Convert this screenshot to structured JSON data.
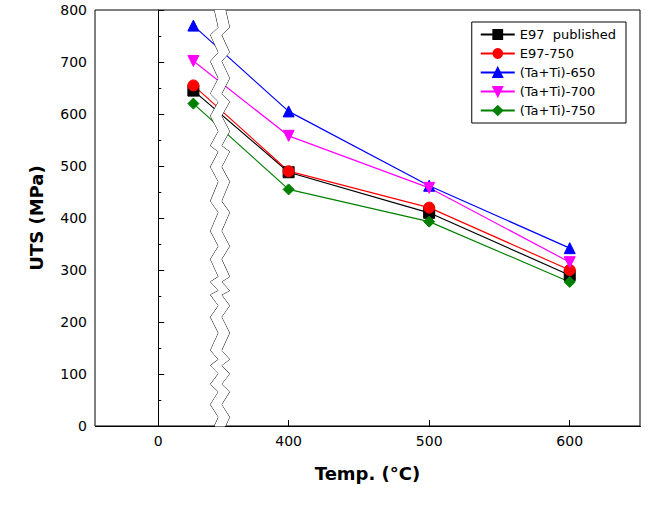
{
  "chart_data": {
    "type": "line",
    "x_label": "Temp. (°C)",
    "y_label": "UTS (MPa)",
    "x": [
      25,
      400,
      500,
      600
    ],
    "xlim": [
      -45,
      650
    ],
    "xticks": [
      0,
      400,
      500,
      600
    ],
    "x_break": [
      40,
      355
    ],
    "ylim": [
      0,
      800
    ],
    "yticks": [
      0,
      100,
      200,
      300,
      400,
      500,
      600,
      700,
      800
    ],
    "grid": false,
    "legend": "upper right",
    "series": [
      {
        "name": "E97  published",
        "color": "#000000",
        "marker": "square",
        "line_style": "solid",
        "values": [
          645,
          488,
          410,
          290
        ]
      },
      {
        "name": "E97-750",
        "color": "#ff0000",
        "marker": "circle",
        "line_style": "solid",
        "values": [
          655,
          490,
          420,
          300
        ]
      },
      {
        "name": "(Ta+Ti)-650",
        "color": "#0000ff",
        "marker": "triangle",
        "line_style": "solid",
        "values": [
          770,
          605,
          462,
          342
        ]
      },
      {
        "name": "(Ta+Ti)-700",
        "color": "#ff00ff",
        "marker": "triangle-down",
        "line_style": "solid",
        "values": [
          702,
          558,
          458,
          315
        ]
      },
      {
        "name": "(Ta+Ti)-750",
        "color": "#008000",
        "marker": "diamond",
        "line_style": "solid",
        "values": [
          620,
          455,
          393,
          277
        ]
      }
    ]
  }
}
